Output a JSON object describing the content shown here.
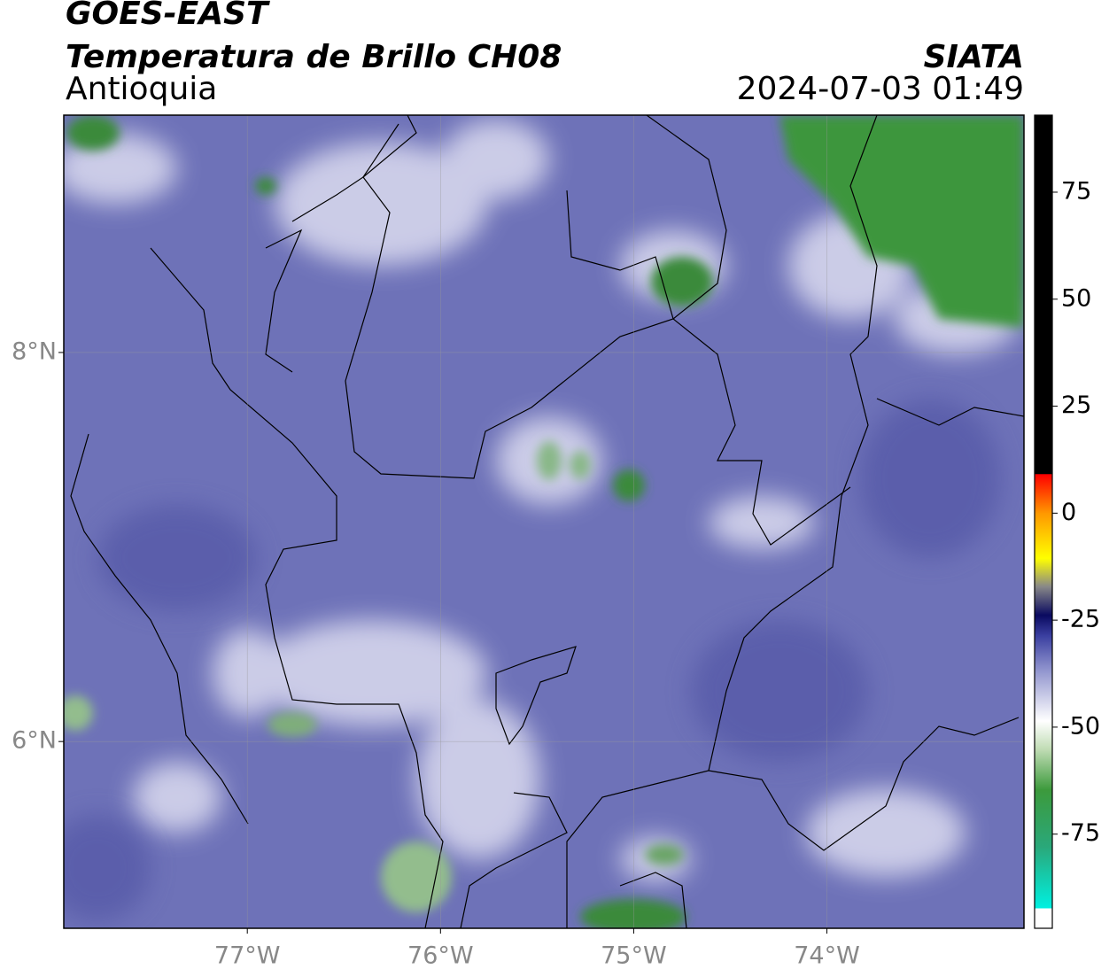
{
  "header": {
    "title": "GOES-EAST",
    "subtitle": "Temperatura de Brillo CH08",
    "region": "Antioquia",
    "source": "SIATA",
    "timestamp": "2024-07-03 01:49"
  },
  "map": {
    "xlim": [
      -77.95,
      -72.98
    ],
    "ylim": [
      5.04,
      9.22
    ],
    "xticks": [
      {
        "value": -77,
        "label": "77°W"
      },
      {
        "value": -76,
        "label": "76°W"
      },
      {
        "value": -75,
        "label": "75°W"
      },
      {
        "value": -74,
        "label": "74°W"
      }
    ],
    "yticks": [
      {
        "value": 8,
        "label": "8°N"
      },
      {
        "value": 6,
        "label": "6°N"
      }
    ]
  },
  "colorbar": {
    "lim": [
      -97,
      93
    ],
    "ticks": [
      75,
      50,
      25,
      0,
      -25,
      -50,
      -75
    ]
  }
}
